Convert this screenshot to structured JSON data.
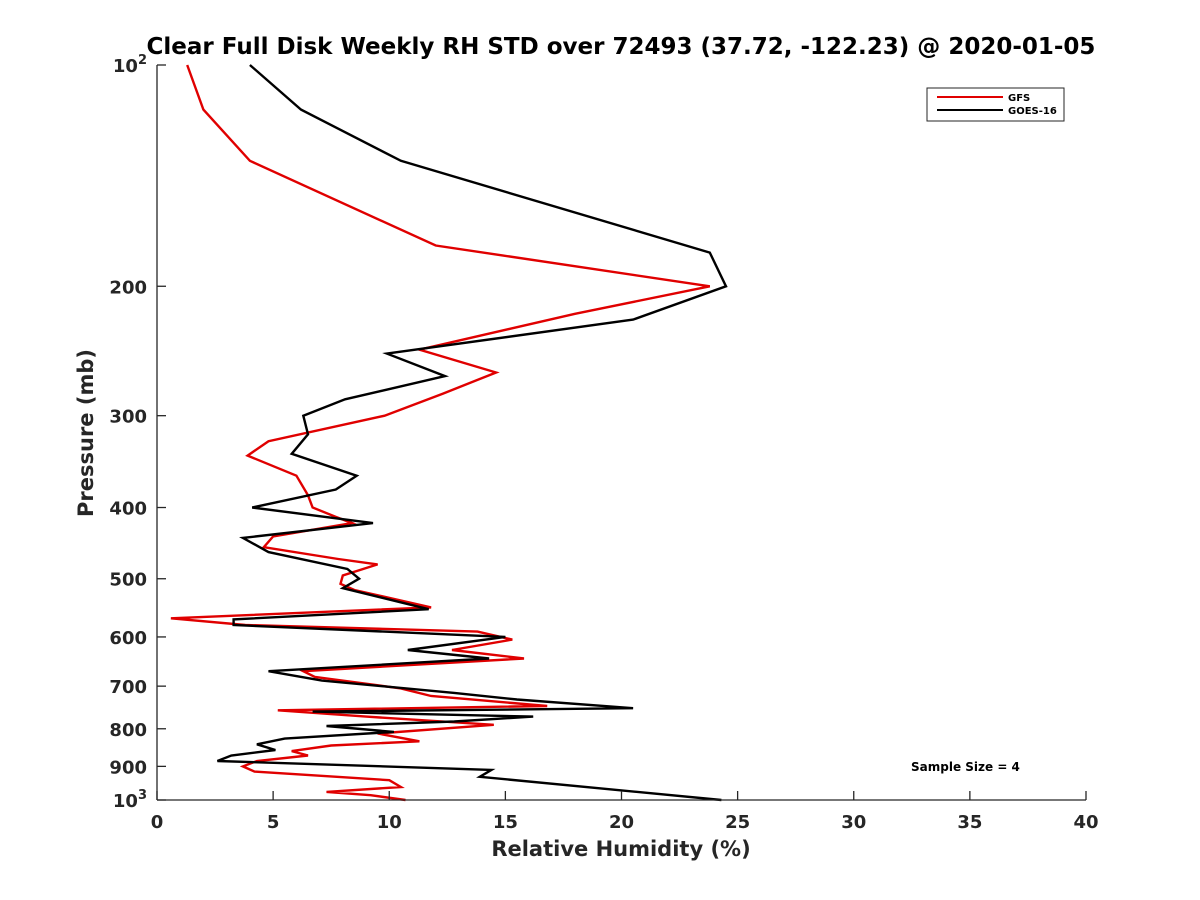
{
  "chart_data": {
    "type": "line",
    "title": "Clear Full Disk Weekly RH STD over 72493 (37.72, -122.23) @ 2020-01-05",
    "xlabel": "Relative Humidity (%)",
    "ylabel": "Pressure (mb)",
    "xlim": [
      0,
      40
    ],
    "ylim": [
      100,
      1000
    ],
    "yscale": "log",
    "y_reversed": true,
    "grid": false,
    "x_ticks": [
      0,
      5,
      10,
      15,
      20,
      25,
      30,
      35,
      40
    ],
    "x_tick_labels": [
      "0",
      "5",
      "10",
      "15",
      "20",
      "25",
      "30",
      "35",
      "40"
    ],
    "y_ticks": [
      100,
      200,
      300,
      400,
      500,
      600,
      700,
      800,
      900,
      1000
    ],
    "y_tick_labels": [
      {
        "base": "10",
        "exp": "2"
      },
      {
        "base": "200",
        "exp": ""
      },
      {
        "base": "300",
        "exp": ""
      },
      {
        "base": "400",
        "exp": ""
      },
      {
        "base": "500",
        "exp": ""
      },
      {
        "base": "600",
        "exp": ""
      },
      {
        "base": "700",
        "exp": ""
      },
      {
        "base": "800",
        "exp": ""
      },
      {
        "base": "900",
        "exp": ""
      },
      {
        "base": "10",
        "exp": "3"
      }
    ],
    "legend_position": "top-right",
    "annotation": "Sample Size = 4",
    "series": [
      {
        "name": "GFS",
        "color": "#e00000",
        "points": [
          [
            1.3,
            100
          ],
          [
            2.0,
            115
          ],
          [
            4.0,
            135
          ],
          [
            12.0,
            176
          ],
          [
            23.8,
            200
          ],
          [
            18.0,
            218
          ],
          [
            11.3,
            244
          ],
          [
            14.6,
            262
          ],
          [
            12.3,
            280
          ],
          [
            9.8,
            300
          ],
          [
            4.8,
            325
          ],
          [
            3.9,
            340
          ],
          [
            6.0,
            362
          ],
          [
            6.5,
            385
          ],
          [
            6.7,
            400
          ],
          [
            7.7,
            412
          ],
          [
            8.4,
            420
          ],
          [
            5.0,
            438
          ],
          [
            4.6,
            453
          ],
          [
            7.8,
            470
          ],
          [
            9.5,
            478
          ],
          [
            8.0,
            495
          ],
          [
            7.9,
            508
          ],
          [
            8.5,
            518
          ],
          [
            11.8,
            547
          ],
          [
            0.6,
            566
          ],
          [
            3.8,
            578
          ],
          [
            13.8,
            590
          ],
          [
            15.3,
            605
          ],
          [
            12.7,
            625
          ],
          [
            15.8,
            642
          ],
          [
            6.3,
            668
          ],
          [
            6.8,
            680
          ],
          [
            10.5,
            705
          ],
          [
            11.8,
            722
          ],
          [
            16.8,
            745
          ],
          [
            5.2,
            755
          ],
          [
            9.0,
            770
          ],
          [
            14.5,
            790
          ],
          [
            9.5,
            812
          ],
          [
            11.3,
            832
          ],
          [
            7.5,
            843
          ],
          [
            5.8,
            858
          ],
          [
            6.5,
            870
          ],
          [
            4.3,
            885
          ],
          [
            3.7,
            900
          ],
          [
            4.2,
            915
          ],
          [
            10.0,
            940
          ],
          [
            10.5,
            960
          ],
          [
            7.3,
            975
          ],
          [
            9.2,
            985
          ],
          [
            10.7,
            1000
          ]
        ]
      },
      {
        "name": "GOES-16",
        "color": "#000000",
        "points": [
          [
            4.0,
            100
          ],
          [
            6.2,
            115
          ],
          [
            10.5,
            135
          ],
          [
            23.8,
            180
          ],
          [
            24.5,
            200
          ],
          [
            20.5,
            222
          ],
          [
            9.9,
            247
          ],
          [
            12.4,
            265
          ],
          [
            8.1,
            285
          ],
          [
            6.3,
            300
          ],
          [
            6.5,
            318
          ],
          [
            5.8,
            338
          ],
          [
            8.6,
            362
          ],
          [
            7.7,
            378
          ],
          [
            4.1,
            400
          ],
          [
            9.3,
            420
          ],
          [
            3.7,
            440
          ],
          [
            4.8,
            460
          ],
          [
            8.2,
            485
          ],
          [
            8.7,
            500
          ],
          [
            8.0,
            515
          ],
          [
            11.7,
            550
          ],
          [
            3.3,
            568
          ],
          [
            3.3,
            578
          ],
          [
            15.0,
            600
          ],
          [
            10.8,
            625
          ],
          [
            14.3,
            642
          ],
          [
            4.8,
            668
          ],
          [
            7.1,
            688
          ],
          [
            12.8,
            715
          ],
          [
            15.5,
            730
          ],
          [
            20.5,
            750
          ],
          [
            6.7,
            758
          ],
          [
            16.2,
            770
          ],
          [
            12.8,
            782
          ],
          [
            7.3,
            793
          ],
          [
            10.2,
            808
          ],
          [
            5.5,
            825
          ],
          [
            4.3,
            840
          ],
          [
            5.1,
            855
          ],
          [
            3.2,
            870
          ],
          [
            2.6,
            885
          ],
          [
            14.4,
            910
          ],
          [
            13.9,
            930
          ],
          [
            24.3,
            1000
          ]
        ]
      }
    ]
  }
}
